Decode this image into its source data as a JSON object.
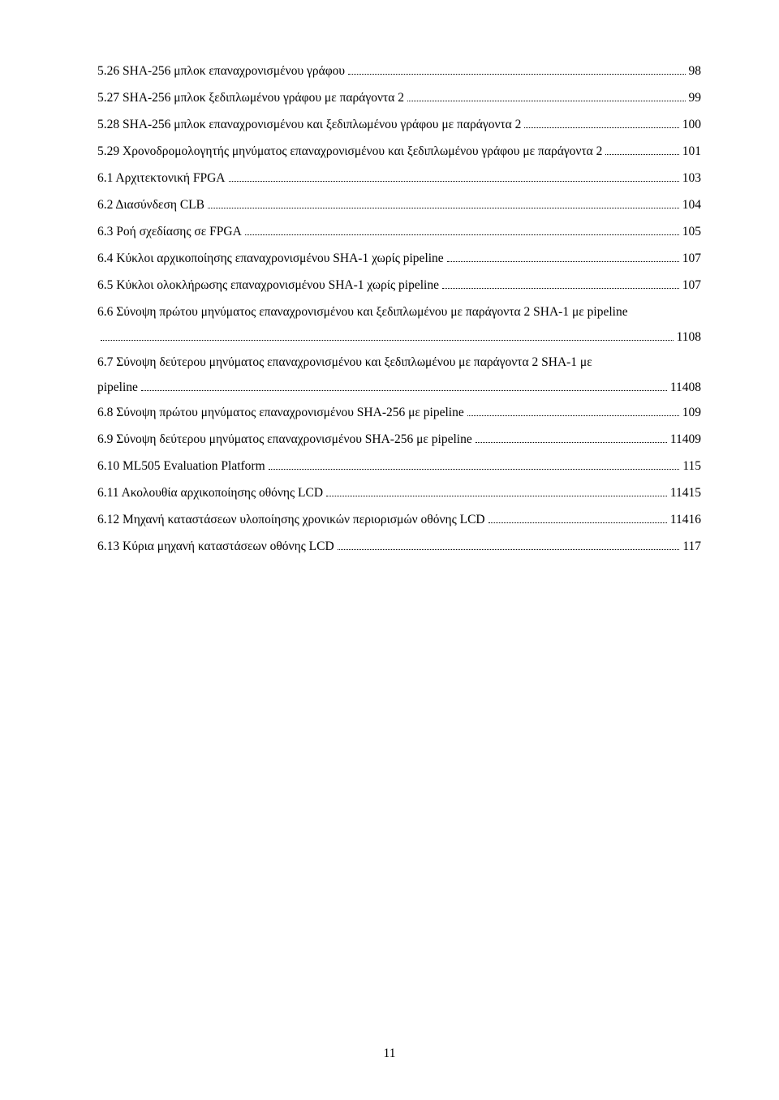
{
  "page_number": "11",
  "entries": [
    {
      "label": "5.26 SHA-256 μπλοκ επαναχρονισμένου γράφου",
      "page": "98"
    },
    {
      "label": "5.27 SHA-256 μπλοκ ξεδιπλωμένου γράφου με παράγοντα 2",
      "page": "99"
    },
    {
      "label": "5.28 SHA-256 μπλοκ επαναχρονισμένου και ξεδιπλωμένου γράφου με παράγοντα 2",
      "page": "100"
    },
    {
      "label": "5.29 Χρονοδρομολογητής μηνύματος επαναχρονισμένου και ξεδιπλωμένου γράφου με παράγοντα 2",
      "page": "101"
    },
    {
      "label": "6.1 Αρχιτεκτονική FPGA",
      "page": "103"
    },
    {
      "label": "6.2 Διασύνδεση CLB",
      "page": "104"
    },
    {
      "label": "6.3 Ροή σχεδίασης σε FPGA",
      "page": "105"
    },
    {
      "label": "6.4 Κύκλοι αρχικοποίησης επαναχρονισμένου SHA-1 χωρίς pipeline",
      "page": "107"
    },
    {
      "label": "6.5 Κύκλοι ολοκλήρωσης επαναχρονισμένου SHA-1 χωρίς pipeline",
      "page": "107"
    },
    {
      "multiline": true,
      "first": "6.6 Σύνοψη πρώτου μηνύματος επαναχρονισμένου και ξεδιπλωμένου με παράγοντα 2 SHA-1 με pipeline",
      "last": "",
      "page": "1108"
    },
    {
      "multiline": true,
      "first": "6.7 Σύνοψη δεύτερου μηνύματος επαναχρονισμένου και ξεδιπλωμένου με παράγοντα 2 SHA-1 με",
      "last": "pipeline",
      "page": "11408"
    },
    {
      "label": "6.8 Σύνοψη πρώτου μηνύματος επαναχρονισμένου SHA-256 με pipeline",
      "page": "109"
    },
    {
      "label": "6.9 Σύνοψη δεύτερου μηνύματος επαναχρονισμένου SHA-256 με pipeline",
      "page": "11409"
    },
    {
      "label": "6.10 ML505 Evaluation Platform",
      "page": "115"
    },
    {
      "label": "6.11 Ακολουθία αρχικοποίησης οθόνης LCD",
      "page": "11415"
    },
    {
      "label": "6.12 Μηχανή καταστάσεων υλοποίησης χρονικών περιορισμών οθόνης LCD",
      "page": "11416"
    },
    {
      "label": "6.13 Κύρια μηχανή καταστάσεων οθόνης LCD",
      "page": "117"
    }
  ]
}
